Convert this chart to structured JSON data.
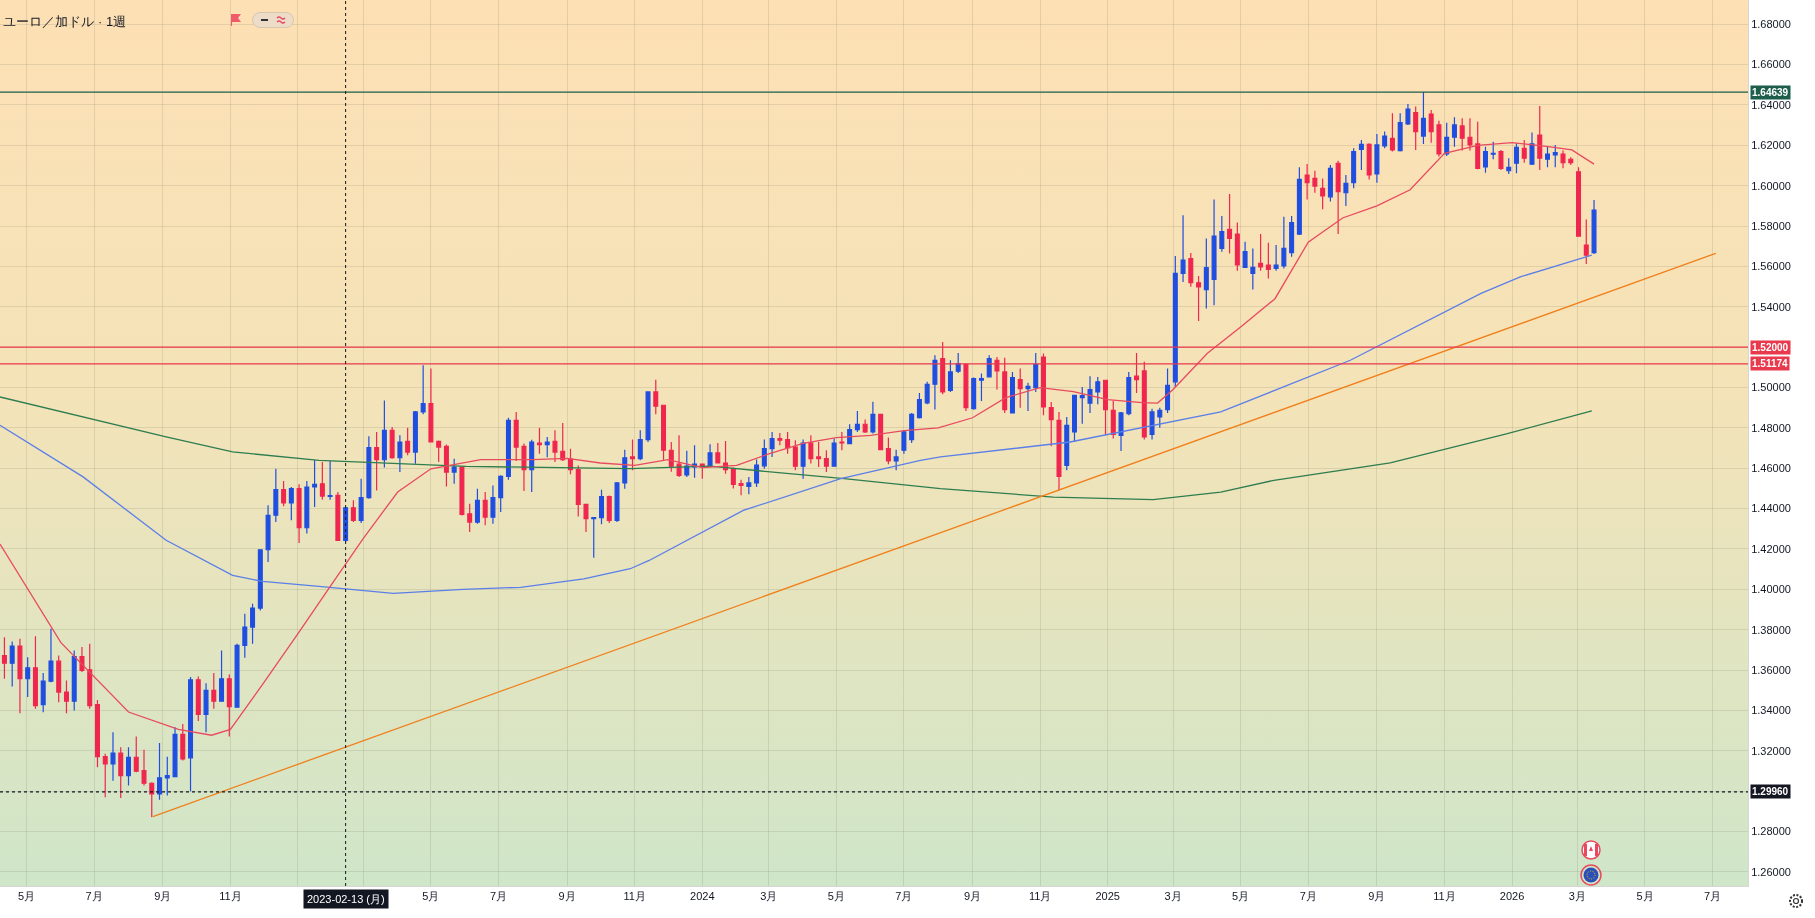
{
  "chart_data": {
    "type": "candlestick",
    "title": "ユーロ／加ドル · 1週",
    "x": [
      "2022-04-11",
      "2022-04-18",
      "2022-04-25",
      "2022-05-02",
      "2022-05-09",
      "2022-05-16",
      "2022-05-23",
      "2022-05-30",
      "2022-06-06",
      "2022-06-13",
      "2022-06-20",
      "2022-06-27",
      "2022-07-04",
      "2022-07-11",
      "2022-07-18",
      "2022-07-25",
      "2022-08-01",
      "2022-08-08",
      "2022-08-15",
      "2022-08-22",
      "2022-08-29",
      "2022-09-05",
      "2022-09-12",
      "2022-09-19",
      "2022-09-26",
      "2022-10-03",
      "2022-10-10",
      "2022-10-17",
      "2022-10-24",
      "2022-10-31",
      "2022-11-07",
      "2022-11-14",
      "2022-11-21",
      "2022-11-28",
      "2022-12-05",
      "2022-12-12",
      "2022-12-19",
      "2022-12-26",
      "2023-01-02",
      "2023-01-09",
      "2023-01-16",
      "2023-01-23",
      "2023-01-30",
      "2023-02-06",
      "2023-02-13",
      "2023-02-20",
      "2023-02-27",
      "2023-03-06",
      "2023-03-13",
      "2023-03-20",
      "2023-03-27",
      "2023-04-03",
      "2023-04-10",
      "2023-04-17",
      "2023-04-24",
      "2023-05-01",
      "2023-05-08",
      "2023-05-15",
      "2023-05-22",
      "2023-05-29",
      "2023-06-05",
      "2023-06-12",
      "2023-06-19",
      "2023-06-26",
      "2023-07-03",
      "2023-07-10",
      "2023-07-17",
      "2023-07-24",
      "2023-07-31",
      "2023-08-07",
      "2023-08-14",
      "2023-08-21",
      "2023-08-28",
      "2023-09-04",
      "2023-09-11",
      "2023-09-18",
      "2023-09-25",
      "2023-10-02",
      "2023-10-09",
      "2023-10-16",
      "2023-10-23",
      "2023-10-30",
      "2023-11-06",
      "2023-11-13",
      "2023-11-20",
      "2023-11-27",
      "2023-12-04",
      "2023-12-11",
      "2023-12-18",
      "2023-12-25",
      "2024-01-01",
      "2024-01-08",
      "2024-01-15",
      "2024-01-22",
      "2024-01-29",
      "2024-02-05",
      "2024-02-12",
      "2024-02-19",
      "2024-02-26",
      "2024-03-04",
      "2024-03-11",
      "2024-03-18",
      "2024-03-25",
      "2024-04-01",
      "2024-04-08",
      "2024-04-15",
      "2024-04-22",
      "2024-04-29",
      "2024-05-06",
      "2024-05-13",
      "2024-05-20",
      "2024-05-27",
      "2024-06-03",
      "2024-06-10",
      "2024-06-17",
      "2024-06-24",
      "2024-07-01",
      "2024-07-08",
      "2024-07-15",
      "2024-07-22",
      "2024-07-29",
      "2024-08-05",
      "2024-08-12",
      "2024-08-19",
      "2024-08-26",
      "2024-09-02",
      "2024-09-09",
      "2024-09-16",
      "2024-09-23",
      "2024-09-30",
      "2024-10-07",
      "2024-10-14",
      "2024-10-21",
      "2024-10-28",
      "2024-11-04",
      "2024-11-11",
      "2024-11-18",
      "2024-11-25",
      "2024-12-02",
      "2024-12-09",
      "2024-12-16",
      "2024-12-23",
      "2024-12-30",
      "2025-01-06",
      "2025-01-13",
      "2025-01-20",
      "2025-01-27",
      "2025-02-03",
      "2025-02-10",
      "2025-02-17",
      "2025-02-24",
      "2025-03-03",
      "2025-03-10",
      "2025-03-17",
      "2025-03-24",
      "2025-03-31",
      "2025-04-07",
      "2025-04-14",
      "2025-04-21",
      "2025-04-28",
      "2025-05-05",
      "2025-05-12",
      "2025-05-19",
      "2025-05-26",
      "2025-06-02",
      "2025-06-09",
      "2025-06-16",
      "2025-06-23",
      "2025-06-30",
      "2025-07-07",
      "2025-07-14",
      "2025-07-21",
      "2025-07-28",
      "2025-08-04",
      "2025-08-11",
      "2025-08-18",
      "2025-08-25",
      "2025-09-01",
      "2025-09-08",
      "2025-09-15",
      "2025-09-22",
      "2025-09-29",
      "2025-10-06",
      "2025-10-13",
      "2025-10-20",
      "2025-10-27",
      "2025-11-03",
      "2025-11-10",
      "2025-11-17",
      "2025-11-24",
      "2025-12-01",
      "2025-12-08",
      "2025-12-15",
      "2025-12-22",
      "2025-12-29",
      "2026-01-05",
      "2026-01-12",
      "2026-01-19",
      "2026-01-26",
      "2026-02-02",
      "2026-02-09",
      "2026-02-16",
      "2026-02-23",
      "2026-03-02",
      "2026-03-09",
      "2026-03-16"
    ],
    "ohlc": [
      [
        1.3672,
        1.3763,
        1.3557,
        1.3634
      ],
      [
        1.3634,
        1.3742,
        1.3519,
        1.3719
      ],
      [
        1.3719,
        1.3755,
        1.3386,
        1.3557
      ],
      [
        1.3557,
        1.3664,
        1.3466,
        1.3611
      ],
      [
        1.3611,
        1.3767,
        1.3408,
        1.3424
      ],
      [
        1.3429,
        1.3585,
        1.3391,
        1.3545
      ],
      [
        1.3545,
        1.3805,
        1.354,
        1.3644
      ],
      [
        1.3644,
        1.3672,
        1.3441,
        1.3491
      ],
      [
        1.3491,
        1.3548,
        1.3386,
        1.3446
      ],
      [
        1.3446,
        1.3697,
        1.34,
        1.3667
      ],
      [
        1.3667,
        1.3714,
        1.359,
        1.3598
      ],
      [
        1.3601,
        1.373,
        1.3408,
        1.3424
      ],
      [
        1.3429,
        1.3452,
        1.3119,
        1.3171
      ],
      [
        1.3171,
        1.3185,
        1.297,
        1.3135
      ],
      [
        1.3135,
        1.3292,
        1.3052,
        1.3188
      ],
      [
        1.3188,
        1.3218,
        1.2966,
        1.3077
      ],
      [
        1.3077,
        1.3218,
        1.3028,
        1.3168
      ],
      [
        1.3168,
        1.3271,
        1.3094,
        1.3099
      ],
      [
        1.3102,
        1.3205,
        1.3028,
        1.3039
      ],
      [
        1.3039,
        1.3044,
        1.2871,
        1.2986
      ],
      [
        1.2986,
        1.3238,
        1.2957,
        1.3066
      ],
      [
        1.3066,
        1.3171,
        1.2978,
        1.3077
      ],
      [
        1.3072,
        1.3317,
        1.3072,
        1.3281
      ],
      [
        1.3281,
        1.3333,
        1.3152,
        1.316
      ],
      [
        1.3165,
        1.3565,
        1.2999,
        1.3552
      ],
      [
        1.3552,
        1.3568,
        1.3347,
        1.338
      ],
      [
        1.338,
        1.3535,
        1.3292,
        1.3499
      ],
      [
        1.3499,
        1.3585,
        1.3408,
        1.3446
      ],
      [
        1.3446,
        1.3697,
        1.3446,
        1.3557
      ],
      [
        1.3557,
        1.3578,
        1.3271,
        1.3419
      ],
      [
        1.3416,
        1.373,
        1.3413,
        1.3722
      ],
      [
        1.3722,
        1.3879,
        1.3661,
        1.3813
      ],
      [
        1.3813,
        1.3929,
        1.373,
        1.3907
      ],
      [
        1.3907,
        1.4196,
        1.3895,
        1.4196
      ],
      [
        1.4196,
        1.4416,
        1.4135,
        1.4367
      ],
      [
        1.4367,
        1.4598,
        1.4333,
        1.4494
      ],
      [
        1.4494,
        1.4537,
        1.4411,
        1.4428
      ],
      [
        1.4428,
        1.4507,
        1.4342,
        1.4499
      ],
      [
        1.4499,
        1.452,
        1.4229,
        1.4305
      ],
      [
        1.4305,
        1.4537,
        1.4276,
        1.4507
      ],
      [
        1.4507,
        1.4639,
        1.4408,
        1.452
      ],
      [
        1.4523,
        1.4631,
        1.4444,
        1.4462
      ],
      [
        1.446,
        1.4636,
        1.4444,
        1.4464
      ],
      [
        1.4465,
        1.4482,
        1.4242,
        1.4242
      ],
      [
        1.4242,
        1.4408,
        1.4234,
        1.4404
      ],
      [
        1.4404,
        1.4441,
        1.4333,
        1.4341
      ],
      [
        1.4341,
        1.4548,
        1.4328,
        1.4454
      ],
      [
        1.4454,
        1.4758,
        1.4449,
        1.4702
      ],
      [
        1.4702,
        1.4779,
        1.449,
        1.4642
      ],
      [
        1.4642,
        1.4936,
        1.4603,
        1.4788
      ],
      [
        1.4788,
        1.4804,
        1.4647,
        1.4652
      ],
      [
        1.4652,
        1.4763,
        1.4581,
        1.473
      ],
      [
        1.4733,
        1.4801,
        1.4664,
        1.468
      ],
      [
        1.468,
        1.4884,
        1.4622,
        1.4879
      ],
      [
        1.4879,
        1.511,
        1.4867,
        1.492
      ],
      [
        1.492,
        1.5094,
        1.473,
        1.473
      ],
      [
        1.4733,
        1.4738,
        1.4631,
        1.4705
      ],
      [
        1.4708,
        1.4718,
        1.451,
        1.4581
      ],
      [
        1.4581,
        1.4647,
        1.4523,
        1.4606
      ],
      [
        1.4606,
        1.4609,
        1.4366,
        1.4371
      ],
      [
        1.4374,
        1.4424,
        1.4284,
        1.4333
      ],
      [
        1.4333,
        1.4498,
        1.4325,
        1.4441
      ],
      [
        1.4441,
        1.4482,
        1.4317,
        1.4358
      ],
      [
        1.4358,
        1.4515,
        1.4325,
        1.4454
      ],
      [
        1.4454,
        1.4565,
        1.4383,
        1.456
      ],
      [
        1.456,
        1.485,
        1.4543,
        1.4837
      ],
      [
        1.4837,
        1.4879,
        1.4636,
        1.4705
      ],
      [
        1.4708,
        1.4722,
        1.4487,
        1.4593
      ],
      [
        1.4593,
        1.4741,
        1.4482,
        1.473
      ],
      [
        1.4725,
        1.4801,
        1.4672,
        1.4717
      ],
      [
        1.4717,
        1.4755,
        1.4655,
        1.473
      ],
      [
        1.4733,
        1.4788,
        1.4631,
        1.468
      ],
      [
        1.4684,
        1.4824,
        1.4636,
        1.4642
      ],
      [
        1.4645,
        1.4697,
        1.457,
        1.4593
      ],
      [
        1.4593,
        1.4614,
        1.4361,
        1.4421
      ],
      [
        1.4421,
        1.4424,
        1.4284,
        1.435
      ],
      [
        1.435,
        1.4358,
        1.4156,
        1.4355
      ],
      [
        1.4355,
        1.4493,
        1.4322,
        1.446
      ],
      [
        1.446,
        1.4465,
        1.4328,
        1.4341
      ],
      [
        1.4341,
        1.4532,
        1.4333,
        1.4527
      ],
      [
        1.4527,
        1.4692,
        1.4498,
        1.4652
      ],
      [
        1.4656,
        1.4742,
        1.459,
        1.4648
      ],
      [
        1.4648,
        1.4788,
        1.4639,
        1.4742
      ],
      [
        1.4742,
        1.4978,
        1.473,
        1.4978
      ],
      [
        1.4978,
        1.5039,
        1.4867,
        1.4907
      ],
      [
        1.4912,
        1.4912,
        1.4639,
        1.4689
      ],
      [
        1.4689,
        1.473,
        1.4582,
        1.461
      ],
      [
        1.462,
        1.4763,
        1.4557,
        1.4565
      ],
      [
        1.4567,
        1.4686,
        1.4557,
        1.461
      ],
      [
        1.4607,
        1.4714,
        1.4553,
        1.462
      ],
      [
        1.462,
        1.4623,
        1.4548,
        1.461
      ],
      [
        1.461,
        1.4719,
        1.4607,
        1.4676
      ],
      [
        1.4676,
        1.4725,
        1.4623,
        1.4626
      ],
      [
        1.4626,
        1.4735,
        1.4573,
        1.4593
      ],
      [
        1.4598,
        1.4603,
        1.4499,
        1.452
      ],
      [
        1.4524,
        1.4543,
        1.4466,
        1.4515
      ],
      [
        1.451,
        1.4557,
        1.4471,
        1.4527
      ],
      [
        1.4527,
        1.4643,
        1.4507,
        1.4615
      ],
      [
        1.4612,
        1.4742,
        1.4598,
        1.4697
      ],
      [
        1.4697,
        1.478,
        1.4656,
        1.4747
      ],
      [
        1.4747,
        1.4775,
        1.4714,
        1.4739
      ],
      [
        1.4742,
        1.478,
        1.4672,
        1.4702
      ],
      [
        1.4705,
        1.4739,
        1.459,
        1.461
      ],
      [
        1.461,
        1.4742,
        1.4548,
        1.4725
      ],
      [
        1.4725,
        1.4763,
        1.4623,
        1.4648
      ],
      [
        1.4656,
        1.473,
        1.4606,
        1.4648
      ],
      [
        1.4648,
        1.4689,
        1.4581,
        1.461
      ],
      [
        1.461,
        1.4747,
        1.4607,
        1.4725
      ],
      [
        1.473,
        1.478,
        1.4689,
        1.4725
      ],
      [
        1.4722,
        1.4818,
        1.4719,
        1.4791
      ],
      [
        1.4791,
        1.4884,
        1.478,
        1.4818
      ],
      [
        1.4818,
        1.4841,
        1.4775,
        1.478
      ],
      [
        1.478,
        1.4929,
        1.4772,
        1.4867
      ],
      [
        1.4867,
        1.4867,
        1.4689,
        1.4692
      ],
      [
        1.4697,
        1.4752,
        1.462,
        1.4636
      ],
      [
        1.4636,
        1.4692,
        1.459,
        1.4656
      ],
      [
        1.4689,
        1.4788,
        1.4672,
        1.478
      ],
      [
        1.4742,
        1.4874,
        1.4725,
        1.4867
      ],
      [
        1.4851,
        1.4973,
        1.4846,
        1.494
      ],
      [
        1.4924,
        1.5028,
        1.4917,
        1.5016
      ],
      [
        1.5016,
        1.516,
        1.4891,
        1.5135
      ],
      [
        1.5143,
        1.5226,
        1.4966,
        1.4978
      ],
      [
        1.4986,
        1.5135,
        1.4978,
        1.5077
      ],
      [
        1.5081,
        1.5171,
        1.5072,
        1.5119
      ],
      [
        1.5115,
        1.5119,
        1.4884,
        1.49
      ],
      [
        1.4895,
        1.5049,
        1.489,
        1.5044
      ],
      [
        1.5036,
        1.5069,
        1.4933,
        1.5044
      ],
      [
        1.5053,
        1.516,
        1.5049,
        1.5143
      ],
      [
        1.5135,
        1.5151,
        1.499,
        1.5082
      ],
      [
        1.5077,
        1.5148,
        1.4874,
        1.489
      ],
      [
        1.4874,
        1.5077,
        1.4874,
        1.5049
      ],
      [
        1.5039,
        1.5094,
        1.49,
        1.4994
      ],
      [
        1.4994,
        1.5023,
        1.4884,
        1.5006
      ],
      [
        1.4999,
        1.5171,
        1.4978,
        1.5115
      ],
      [
        1.5151,
        1.5168,
        1.4862,
        1.4904
      ],
      [
        1.49,
        1.4928,
        1.4709,
        1.4841
      ],
      [
        1.4837,
        1.4879,
        1.449,
        1.456
      ],
      [
        1.4614,
        1.4854,
        1.459,
        1.4813
      ],
      [
        1.478,
        1.4961,
        1.473,
        1.4961
      ],
      [
        1.495,
        1.5003,
        1.4821,
        1.496
      ],
      [
        1.4923,
        1.5056,
        1.4874,
        1.4989
      ],
      [
        1.4978,
        1.5052,
        1.4917,
        1.5028
      ],
      [
        1.5036,
        1.5039,
        1.4763,
        1.489
      ],
      [
        1.4887,
        1.4933,
        1.4747,
        1.4768
      ],
      [
        1.4763,
        1.4879,
        1.4685,
        1.4874
      ],
      [
        1.487,
        1.5077,
        1.4862,
        1.5049
      ],
      [
        1.5056,
        1.5171,
        1.4973,
        1.5039
      ],
      [
        1.5082,
        1.5127,
        1.4742,
        1.4755
      ],
      [
        1.4768,
        1.4895,
        1.4742,
        1.4879
      ],
      [
        1.4854,
        1.49,
        1.4801,
        1.4887
      ],
      [
        1.489,
        1.5094,
        1.4874,
        1.5011
      ],
      [
        1.5028,
        1.5651,
        1.5003,
        1.5565
      ],
      [
        1.5565,
        1.5854,
        1.5523,
        1.5631
      ],
      [
        1.5639,
        1.5667,
        1.5499,
        1.5519
      ],
      [
        1.5519,
        1.5552,
        1.533,
        1.5499
      ],
      [
        1.5485,
        1.5738,
        1.5391,
        1.5594
      ],
      [
        1.5535,
        1.5932,
        1.5408,
        1.575
      ],
      [
        1.5689,
        1.585,
        1.5673,
        1.5772
      ],
      [
        1.5784,
        1.5959,
        1.5664,
        1.5739
      ],
      [
        1.576,
        1.5817,
        1.5579,
        1.5607
      ],
      [
        1.5595,
        1.5722,
        1.5595,
        1.5673
      ],
      [
        1.5565,
        1.5689,
        1.5486,
        1.5595
      ],
      [
        1.5615,
        1.576,
        1.5579,
        1.5598
      ],
      [
        1.5607,
        1.5717,
        1.554,
        1.5585
      ],
      [
        1.559,
        1.5706,
        1.5579,
        1.5607
      ],
      [
        1.5602,
        1.5846,
        1.559,
        1.5689
      ],
      [
        1.5668,
        1.585,
        1.5648,
        1.5817
      ],
      [
        1.576,
        1.6091,
        1.5755,
        1.6031
      ],
      [
        1.6053,
        1.6107,
        1.5932,
        1.6015
      ],
      [
        1.6036,
        1.6074,
        1.5965,
        1.5998
      ],
      [
        1.5987,
        1.6036,
        1.5883,
        1.5949
      ],
      [
        1.5945,
        1.6102,
        1.5921,
        1.6086
      ],
      [
        1.6111,
        1.6124,
        1.576,
        1.597
      ],
      [
        1.5965,
        1.6053,
        1.5899,
        1.6012
      ],
      [
        1.6015,
        1.6185,
        1.5987,
        1.6169
      ],
      [
        1.618,
        1.6226,
        1.6078,
        1.6205
      ],
      [
        1.6205,
        1.621,
        1.6031,
        1.6053
      ],
      [
        1.6058,
        1.6256,
        1.6015,
        1.6202
      ],
      [
        1.6197,
        1.6268,
        1.6185,
        1.6246
      ],
      [
        1.6235,
        1.6359,
        1.6169,
        1.6177
      ],
      [
        1.6174,
        1.6359,
        1.6169,
        1.6312
      ],
      [
        1.6306,
        1.6405,
        1.6301,
        1.6379
      ],
      [
        1.6362,
        1.6392,
        1.6177,
        1.6268
      ],
      [
        1.6246,
        1.6464,
        1.6207,
        1.6334
      ],
      [
        1.6355,
        1.6375,
        1.6213,
        1.6268
      ],
      [
        1.6301,
        1.6322,
        1.6144,
        1.6157
      ],
      [
        1.6157,
        1.6312,
        1.6147,
        1.624
      ],
      [
        1.624,
        1.6339,
        1.6193,
        1.6301
      ],
      [
        1.6296,
        1.6334,
        1.6174,
        1.6235
      ],
      [
        1.624,
        1.6334,
        1.6174,
        1.6202
      ],
      [
        1.6207,
        1.6317,
        1.6081,
        1.6086
      ],
      [
        1.6093,
        1.6193,
        1.6064,
        1.6169
      ],
      [
        1.6156,
        1.6218,
        1.6131,
        1.616
      ],
      [
        1.6169,
        1.6177,
        1.6078,
        1.6086
      ],
      [
        1.6074,
        1.6136,
        1.6058,
        1.6091
      ],
      [
        1.6111,
        1.621,
        1.6061,
        1.619
      ],
      [
        1.6185,
        1.6226,
        1.6114,
        1.6136
      ],
      [
        1.6107,
        1.6263,
        1.6102,
        1.6207
      ],
      [
        1.6251,
        1.6395,
        1.6078,
        1.6136
      ],
      [
        1.6131,
        1.6197,
        1.6091,
        1.6157
      ],
      [
        1.6152,
        1.6202,
        1.6091,
        1.6164
      ],
      [
        1.6157,
        1.6174,
        1.6086,
        1.6114
      ],
      [
        1.6131,
        1.6141,
        1.6102,
        1.6114
      ],
      [
        1.6069,
        1.6091,
        1.575,
        1.575
      ],
      [
        1.5706,
        1.5833,
        1.5612,
        1.5656
      ],
      [
        1.5668,
        1.5929,
        1.5661,
        1.5879
      ]
    ],
    "series": [
      {
        "type": "line",
        "color": "#2e7d4f",
        "x": [
          "2022-04-07",
          "2022-09-04",
          "2022-11-03",
          "2023-01-20",
          "2023-06-02",
          "2023-10-28",
          "2024-01-08",
          "2024-05-08",
          "2024-08-03",
          "2024-11-13",
          "2025-02-11",
          "2025-04-13",
          "2025-05-31",
          "2025-09-13",
          "2025-12-26",
          "2026-03-14"
        ],
        "values": [
          1.4953,
          1.4755,
          1.4681,
          1.4639,
          1.4609,
          1.4598,
          1.461,
          1.4548,
          1.4499,
          1.4457,
          1.4444,
          1.4482,
          1.454,
          1.4626,
          1.4769,
          1.4884
        ]
      },
      {
        "type": "line",
        "color": "#5b7fe8",
        "x": [
          "2022-04-07",
          "2022-06-21",
          "2022-09-04",
          "2022-11-03",
          "2022-11-30",
          "2023-01-20",
          "2023-03-28",
          "2023-05-30",
          "2023-07-21",
          "2023-09-16",
          "2023-10-28",
          "2023-11-14",
          "2024-02-07",
          "2024-05-05",
          "2024-07-16",
          "2024-08-03",
          "2024-11-28",
          "2025-04-13",
          "2025-08-08",
          "2025-12-04",
          "2026-01-09",
          "2026-03-14"
        ],
        "values": [
          1.4813,
          1.4557,
          1.4243,
          1.4069,
          1.4039,
          1.4015,
          1.398,
          1.4,
          1.401,
          1.4052,
          1.4102,
          1.4143,
          1.4391,
          1.4548,
          1.4639,
          1.4656,
          1.473,
          1.4879,
          1.5135,
          1.5466,
          1.5549,
          1.5656
        ]
      },
      {
        "type": "line",
        "color": "#e84a5f",
        "x": [
          "2022-04-07",
          "2022-06-01",
          "2022-08-01",
          "2022-09-15",
          "2022-10-15",
          "2022-11-01",
          "2022-12-01",
          "2023-01-01",
          "2023-02-01",
          "2023-03-01",
          "2023-04-01",
          "2023-05-01",
          "2023-06-15",
          "2023-08-01",
          "2023-09-01",
          "2023-10-01",
          "2023-11-01",
          "2023-12-01",
          "2024-01-01",
          "2024-02-01",
          "2024-03-01",
          "2024-04-01",
          "2024-05-01",
          "2024-06-01",
          "2024-07-01",
          "2024-08-01",
          "2024-09-01",
          "2024-10-01",
          "2024-11-01",
          "2024-12-01",
          "2025-01-01",
          "2025-02-01",
          "2025-02-15",
          "2025-03-01",
          "2025-04-01",
          "2025-05-01",
          "2025-06-01",
          "2025-07-01",
          "2025-08-01",
          "2025-09-01",
          "2025-10-01",
          "2025-11-01",
          "2025-12-01",
          "2026-01-01",
          "2026-02-01",
          "2026-02-24",
          "2026-03-16"
        ],
        "values": [
          1.4224,
          1.3736,
          1.3392,
          1.3306,
          1.3277,
          1.3306,
          1.3536,
          1.378,
          1.403,
          1.4253,
          1.4482,
          1.4597,
          1.4643,
          1.4643,
          1.4649,
          1.4626,
          1.4614,
          1.4643,
          1.4603,
          1.4614,
          1.4671,
          1.4723,
          1.4752,
          1.4763,
          1.4786,
          1.48,
          1.485,
          1.495,
          1.4999,
          1.498,
          1.494,
          1.4925,
          1.4923,
          1.499,
          1.517,
          1.53,
          1.544,
          1.572,
          1.584,
          1.59,
          1.598,
          1.616,
          1.62,
          1.6213,
          1.6195,
          1.6177,
          1.6107
        ]
      },
      {
        "type": "line",
        "color": "#f07f1a",
        "x": [
          "2022-08-23",
          "2026-07-04"
        ],
        "values": [
          1.2874,
          1.5665
        ]
      }
    ],
    "xlim": [
      "2022-04-07",
      "2026-08-02"
    ],
    "xticks": [
      {
        "value": "2022-05-01",
        "label": "5月"
      },
      {
        "value": "2022-07-01",
        "label": "7月"
      },
      {
        "value": "2022-09-01",
        "label": "9月"
      },
      {
        "value": "2022-11-01",
        "label": "11月"
      },
      {
        "value": "2023-01-01",
        "label": null
      },
      {
        "value": "2023-03-01",
        "label": null
      },
      {
        "value": "2023-05-01",
        "label": "5月"
      },
      {
        "value": "2023-07-01",
        "label": "7月"
      },
      {
        "value": "2023-09-01",
        "label": "9月"
      },
      {
        "value": "2023-11-01",
        "label": "11月"
      },
      {
        "value": "2024-01-01",
        "label": "2024"
      },
      {
        "value": "2024-03-01",
        "label": "3月"
      },
      {
        "value": "2024-05-01",
        "label": "5月"
      },
      {
        "value": "2024-07-01",
        "label": "7月"
      },
      {
        "value": "2024-09-01",
        "label": "9月"
      },
      {
        "value": "2024-11-01",
        "label": "11月"
      },
      {
        "value": "2025-01-01",
        "label": "2025"
      },
      {
        "value": "2025-03-01",
        "label": "3月"
      },
      {
        "value": "2025-05-01",
        "label": "5月"
      },
      {
        "value": "2025-07-01",
        "label": "7月"
      },
      {
        "value": "2025-09-01",
        "label": "9月"
      },
      {
        "value": "2025-11-01",
        "label": "11月"
      },
      {
        "value": "2026-01-01",
        "label": "2026"
      },
      {
        "value": "2026-03-01",
        "label": "3月"
      },
      {
        "value": "2026-05-01",
        "label": "5月"
      },
      {
        "value": "2026-07-01",
        "label": "7月"
      }
    ],
    "ylim": [
      1.253,
      1.692
    ],
    "yticks": [
      {
        "value": 1.26,
        "label": "1.26000"
      },
      {
        "value": 1.28,
        "label": "1.28000"
      },
      {
        "value": 1.3,
        "label": null
      },
      {
        "value": 1.32,
        "label": "1.32000"
      },
      {
        "value": 1.34,
        "label": "1.34000"
      },
      {
        "value": 1.36,
        "label": "1.36000"
      },
      {
        "value": 1.38,
        "label": "1.38000"
      },
      {
        "value": 1.4,
        "label": "1.40000"
      },
      {
        "value": 1.42,
        "label": "1.42000"
      },
      {
        "value": 1.44,
        "label": "1.44000"
      },
      {
        "value": 1.46,
        "label": "1.46000"
      },
      {
        "value": 1.48,
        "label": "1.48000"
      },
      {
        "value": 1.5,
        "label": "1.50000"
      },
      {
        "value": 1.52,
        "label": null
      },
      {
        "value": 1.54,
        "label": "1.54000"
      },
      {
        "value": 1.56,
        "label": "1.56000"
      },
      {
        "value": 1.58,
        "label": "1.58000"
      },
      {
        "value": 1.6,
        "label": "1.60000"
      },
      {
        "value": 1.62,
        "label": "1.62000"
      },
      {
        "value": 1.64,
        "label": "1.64000"
      },
      {
        "value": 1.66,
        "label": "1.66000"
      },
      {
        "value": 1.68,
        "label": "1.68000"
      }
    ],
    "grid": true,
    "ref_lines": [
      {
        "axis": "y",
        "value": 1.64639,
        "label": "1.64639",
        "color": "#1d5e4a",
        "line_style": "solid"
      },
      {
        "axis": "y",
        "value": 1.52,
        "label": "1.52000",
        "color": "#e8394d",
        "line_style": "solid"
      },
      {
        "axis": "y",
        "value": 1.51174,
        "label": "1.51174",
        "color": "#e8394d",
        "line_style": "solid"
      },
      {
        "axis": "y",
        "value": 1.2996,
        "label": "1.29960",
        "color": "#131722",
        "line_style": "dotted"
      },
      {
        "axis": "x",
        "value": "2023-02-13",
        "label": "2023-02-13 (月)",
        "color": "#131722",
        "line_style": "dotted"
      }
    ]
  }
}
